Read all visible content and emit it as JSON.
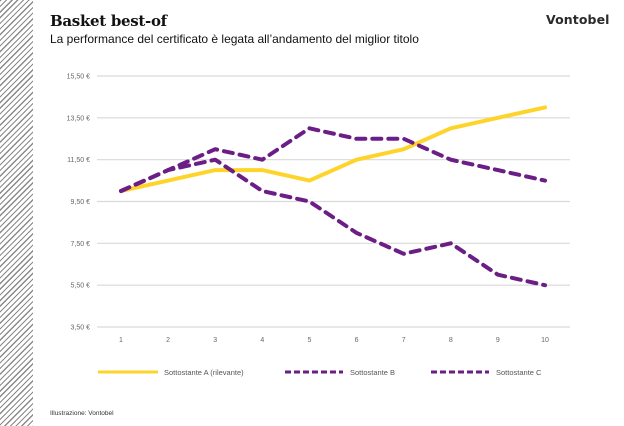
{
  "header": {
    "title": "Basket best-of",
    "subtitle": "La performance del certificato è legata all’andamento del miglior titolo",
    "logo": "Vontobel"
  },
  "footer": {
    "source": "Illustrazione: Vontobel"
  },
  "colors": {
    "series_a": "#FFD42A",
    "series_b": "#6B1E86",
    "series_c": "#6B1E86",
    "grid": "#d9d9d9",
    "hatch": "#8a8a8a"
  },
  "chart_data": {
    "type": "line",
    "title": "Basket best-of",
    "subtitle": "La performance del certificato è legata all’andamento del miglior titolo",
    "xlabel": "",
    "ylabel": "",
    "x": [
      1,
      2,
      3,
      4,
      5,
      6,
      7,
      8,
      9,
      10
    ],
    "x_tick_labels": [
      "1",
      "2",
      "3",
      "4",
      "5",
      "6",
      "7",
      "8",
      "9",
      "10"
    ],
    "ylim": [
      3.5,
      15.5
    ],
    "y_ticks": [
      3.5,
      5.5,
      7.5,
      9.5,
      11.5,
      13.5,
      15.5
    ],
    "y_tick_labels": [
      "3,50 €",
      "5,50 €",
      "7,50 €",
      "9,50 €",
      "11,50 €",
      "13,50 €",
      "15,50 €"
    ],
    "grid": true,
    "legend_position": "bottom",
    "series": [
      {
        "name": "Sottostante A (rilevante)",
        "style": "solid",
        "color": "#FFD42A",
        "values": [
          10,
          10.5,
          11,
          11,
          10.5,
          11.5,
          12,
          13,
          13.5,
          14
        ]
      },
      {
        "name": "Sottostante B",
        "style": "dashed",
        "color": "#6B1E86",
        "values": [
          10,
          11,
          12,
          11.5,
          13,
          12.5,
          12.5,
          11.5,
          11,
          10.5
        ]
      },
      {
        "name": "Sottostante C",
        "style": "dashed",
        "color": "#6B1E86",
        "values": [
          10,
          11,
          11.5,
          10,
          9.5,
          8,
          7,
          7.5,
          6,
          5.5
        ]
      }
    ]
  }
}
